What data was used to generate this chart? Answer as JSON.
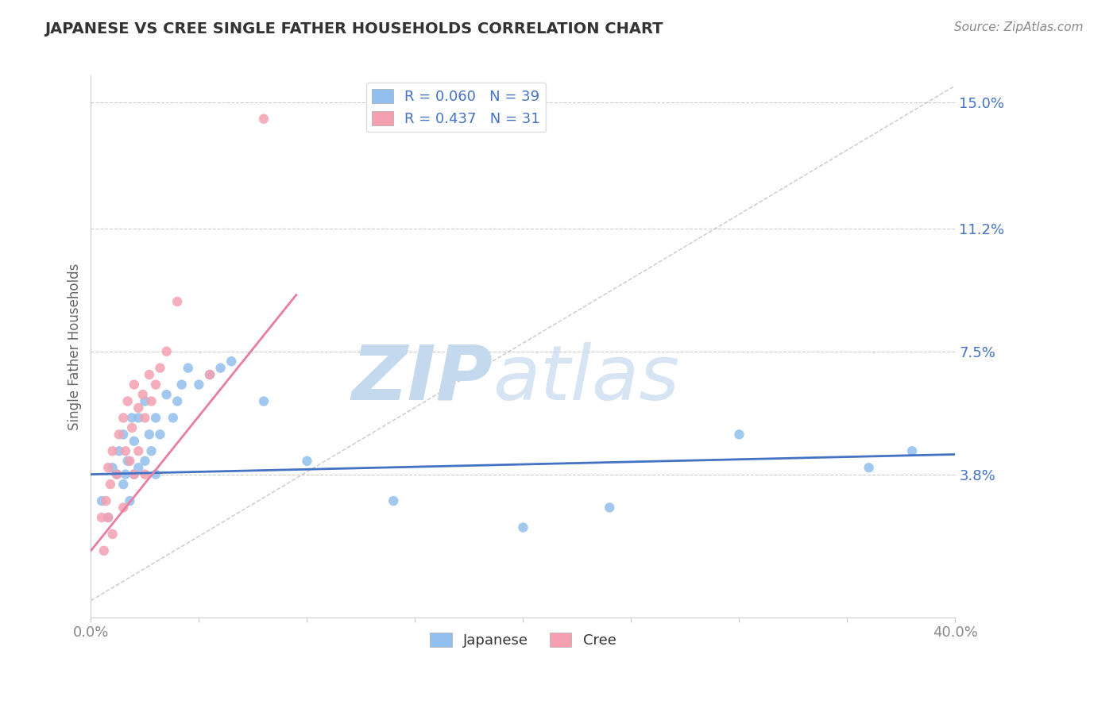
{
  "title": "JAPANESE VS CREE SINGLE FATHER HOUSEHOLDS CORRELATION CHART",
  "source_text": "Source: ZipAtlas.com",
  "ylabel": "Single Father Households",
  "xlim": [
    0.0,
    0.4
  ],
  "ylim": [
    -0.005,
    0.158
  ],
  "xticks": [
    0.0,
    0.05,
    0.1,
    0.15,
    0.2,
    0.25,
    0.3,
    0.35,
    0.4
  ],
  "xtick_labels": [
    "0.0%",
    "",
    "",
    "",
    "",
    "",
    "",
    "",
    "40.0%"
  ],
  "ytick_labels": [
    "3.8%",
    "7.5%",
    "11.2%",
    "15.0%"
  ],
  "yticks": [
    0.038,
    0.075,
    0.112,
    0.15
  ],
  "japanese_color": "#92BFED",
  "cree_color": "#F4A0B0",
  "japanese_line_color": "#4472C4",
  "cree_line_color": "#E97DA0",
  "legend_japanese_r": "R = 0.060",
  "legend_japanese_n": "N = 39",
  "legend_cree_r": "R = 0.437",
  "legend_cree_n": "N = 31",
  "background_color": "#FFFFFF",
  "grid_color": "#CCCCCC",
  "title_color": "#333333",
  "axis_label_color": "#666666",
  "tick_label_color": "#4472C4",
  "japanese_scatter_x": [
    0.005,
    0.008,
    0.01,
    0.012,
    0.013,
    0.015,
    0.015,
    0.016,
    0.017,
    0.018,
    0.019,
    0.02,
    0.02,
    0.022,
    0.022,
    0.025,
    0.025,
    0.027,
    0.028,
    0.03,
    0.03,
    0.032,
    0.035,
    0.038,
    0.04,
    0.042,
    0.045,
    0.05,
    0.055,
    0.06,
    0.065,
    0.08,
    0.1,
    0.14,
    0.2,
    0.24,
    0.3,
    0.36,
    0.38
  ],
  "japanese_scatter_y": [
    0.03,
    0.025,
    0.04,
    0.038,
    0.045,
    0.035,
    0.05,
    0.038,
    0.042,
    0.03,
    0.055,
    0.038,
    0.048,
    0.04,
    0.055,
    0.042,
    0.06,
    0.05,
    0.045,
    0.038,
    0.055,
    0.05,
    0.062,
    0.055,
    0.06,
    0.065,
    0.07,
    0.065,
    0.068,
    0.07,
    0.072,
    0.06,
    0.042,
    0.03,
    0.022,
    0.028,
    0.05,
    0.04,
    0.045
  ],
  "cree_scatter_x": [
    0.005,
    0.006,
    0.007,
    0.008,
    0.008,
    0.009,
    0.01,
    0.01,
    0.012,
    0.013,
    0.015,
    0.015,
    0.016,
    0.017,
    0.018,
    0.019,
    0.02,
    0.02,
    0.022,
    0.022,
    0.024,
    0.025,
    0.025,
    0.027,
    0.028,
    0.03,
    0.032,
    0.035,
    0.04,
    0.055,
    0.08
  ],
  "cree_scatter_y": [
    0.025,
    0.015,
    0.03,
    0.025,
    0.04,
    0.035,
    0.02,
    0.045,
    0.038,
    0.05,
    0.028,
    0.055,
    0.045,
    0.06,
    0.042,
    0.052,
    0.038,
    0.065,
    0.045,
    0.058,
    0.062,
    0.055,
    0.038,
    0.068,
    0.06,
    0.065,
    0.07,
    0.075,
    0.09,
    0.068,
    0.145
  ],
  "jap_line_x0": 0.0,
  "jap_line_x1": 0.4,
  "jap_line_y0": 0.038,
  "jap_line_y1": 0.044,
  "cree_line_x0": 0.0,
  "cree_line_x1": 0.095,
  "cree_line_y0": 0.015,
  "cree_line_y1": 0.092
}
